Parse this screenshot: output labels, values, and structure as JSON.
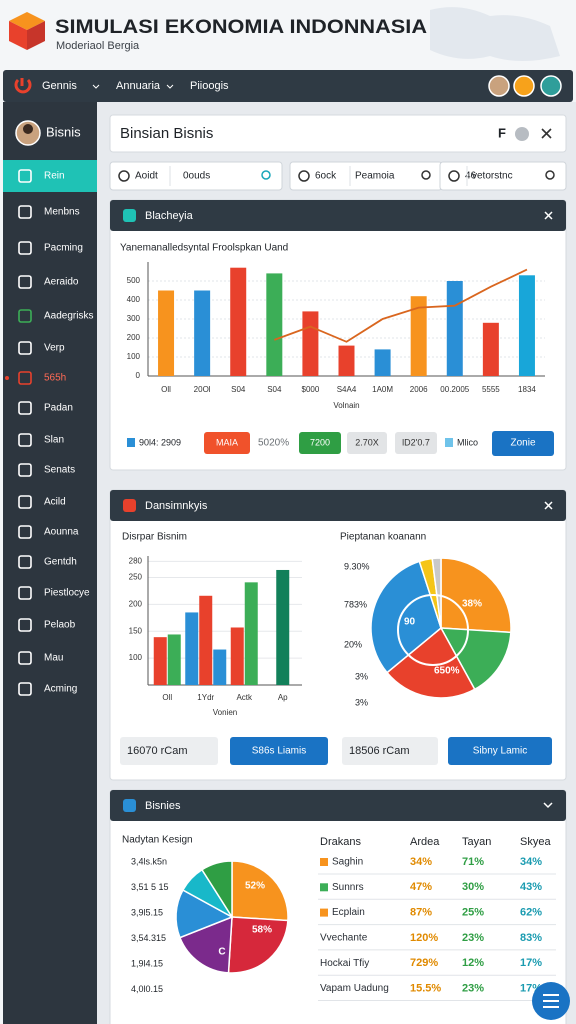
{
  "header": {
    "title": "SIMULASI EKONOMIA INDONNASIA",
    "subtitle": "Moderiaol Bergia"
  },
  "nav": {
    "items": [
      "Gennis",
      "Annuaria",
      "Piioogis"
    ]
  },
  "sidebar": {
    "title": "Bisnis",
    "active": 0,
    "alert": 6,
    "items": [
      "Rein",
      "Menbns",
      "Pacming",
      "Aeraido",
      "Aadegrisks",
      "Verp",
      "565h",
      "Padan",
      "Slan",
      "Senats",
      "Acild",
      "Aounna",
      "Gentdh",
      "Piestlocye",
      "Pelaob",
      "Mau",
      "Acming"
    ]
  },
  "panel": {
    "title": "Binsian Bisnis",
    "icon_text": "F"
  },
  "filters": [
    [
      "Aoidt",
      "0ouds"
    ],
    [
      "6ock",
      "Peamoia"
    ],
    [
      "46",
      "vetorstnc"
    ]
  ],
  "card1": {
    "header": "Blacheyia",
    "legend": [
      "90l4: 2909",
      "MAIA",
      "5020%",
      "7200",
      "2.70X",
      "lD2'0.7",
      "Mlico"
    ],
    "button": "Zonie"
  },
  "card2": {
    "header": "Dansimnkyis",
    "stats": [
      "16070 rCam",
      "18506 rCam"
    ],
    "buttons": [
      "S86s Liamis",
      "Sibny Lamic"
    ]
  },
  "card3": {
    "header": "Bisnies"
  },
  "table": {
    "headers": [
      "Drakans",
      "Ardea",
      "Tayan",
      "Skyea"
    ],
    "rows": [
      [
        "Saghin",
        "34%",
        "71%",
        "34%"
      ],
      [
        "Sunnrs",
        "47%",
        "30%",
        "43%"
      ],
      [
        "Ecplain",
        "87%",
        "25%",
        "62%"
      ],
      [
        "Vvechante",
        "120%",
        "23%",
        "83%"
      ],
      [
        "Hockai Tfiy",
        "729%",
        "12%",
        "17%"
      ],
      [
        "Vapam Uadung",
        "15.5%",
        "23%",
        "17%"
      ]
    ],
    "column_colors": [
      "#2a2f36",
      "#e08a00",
      "#2f9e44",
      "#1a9bb0"
    ],
    "row_icon_colors": [
      "#f7931e",
      "#3cae57",
      "#f7931e"
    ]
  },
  "chart_data": [
    {
      "type": "bar",
      "title": "Yanemanalledsyntal Froolspkan Uand",
      "xlabel": "Volnain",
      "categories": [
        "Oll",
        "20Ol",
        "S04",
        "S04",
        "$000",
        "S4A4",
        "1A0M",
        "2006",
        "00.2005",
        "5555",
        "1834"
      ],
      "series": [
        {
          "type": "bar",
          "values": [
            450,
            450,
            570,
            540,
            340,
            160,
            140,
            420,
            500,
            280,
            530
          ],
          "colors": [
            "#f7931e",
            "#2a8fd6",
            "#e8412c",
            "#3cae57",
            "#e8412c",
            "#e8412c",
            "#2a8fd6",
            "#f7931e",
            "#2a8fd6",
            "#e8412c",
            "#18a6d9"
          ]
        },
        {
          "type": "line",
          "color": "#d9661f",
          "values": [
            null,
            null,
            null,
            190,
            260,
            180,
            300,
            360,
            370,
            470,
            560
          ]
        }
      ],
      "ylim": [
        0,
        600
      ],
      "yticks": [
        0,
        100,
        200,
        300,
        400,
        500
      ],
      "grid": true
    },
    {
      "type": "grouped-bar",
      "title": "Disrpar Bisnim",
      "xlabel": "Vonien",
      "categories": [
        "Oll",
        "1Ydr",
        "Actk",
        "Ap"
      ],
      "series": [
        {
          "values": [
            139,
            185,
            157,
            264
          ],
          "colors": [
            "#e8412c",
            "#2a8fd6",
            "#e8412c",
            "#12805a"
          ]
        },
        {
          "values": [
            144,
            216,
            241,
            null
          ],
          "colors": [
            "#3cae57",
            "#e8412c",
            "#3cae57",
            "#3cae57"
          ]
        },
        {
          "values": [
            null,
            116,
            null,
            null
          ],
          "colors": [
            "#2a8fd6",
            "#2a8fd6",
            "#2a8fd6",
            "#2a8fd6"
          ]
        }
      ],
      "ylim": [
        50,
        290
      ],
      "yticks": [
        100,
        150,
        200,
        250,
        280
      ],
      "grid": true
    },
    {
      "type": "pie",
      "title": "Pieptanan koanann",
      "values": [
        26,
        16,
        22,
        31,
        3,
        2
      ],
      "colors": [
        "#f7931e",
        "#3cae57",
        "#e8412c",
        "#2a8fd6",
        "#f5c518",
        "#c9c9c9"
      ],
      "annotations": [
        "9.30%",
        "783%",
        "20%",
        "3%",
        "3%",
        "38%",
        "90",
        "650%"
      ]
    },
    {
      "type": "pie",
      "title": "Nadytan Kesign",
      "values": [
        26,
        25,
        18,
        14,
        8,
        9
      ],
      "colors": [
        "#f7931e",
        "#d6283b",
        "#7b2a8c",
        "#2a8fd6",
        "#18b8c9",
        "#2f9e44"
      ],
      "side_labels": [
        "3,4ls.k5n",
        "3,51 5 15",
        "3,9l5.15",
        "3,54.315",
        "1,9l4.15",
        "4,0l0.15"
      ],
      "annotations": [
        "52%",
        "58%",
        "C"
      ]
    }
  ]
}
